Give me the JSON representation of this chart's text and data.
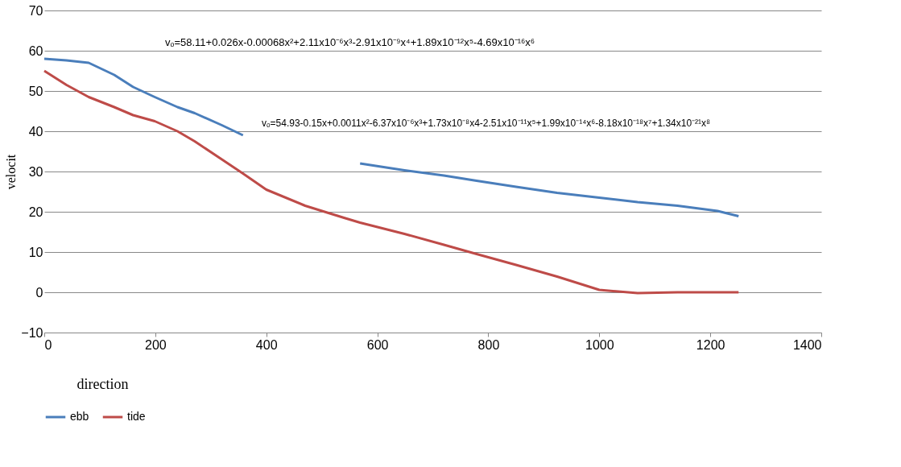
{
  "chart_data": {
    "type": "line",
    "xlabel": "direction",
    "ylabel": "velocit",
    "x": [
      0,
      40,
      80,
      126,
      160,
      199,
      240,
      271,
      320,
      358,
      400,
      470,
      540,
      569,
      649,
      720,
      779,
      850,
      924,
      1000,
      1069,
      1141,
      1213,
      1251
    ],
    "series": [
      {
        "name": "ebb",
        "color": "#4a7ebb",
        "values": [
          58,
          57.6,
          57,
          54,
          51,
          48.5,
          46,
          44.5,
          41.5,
          39,
          null,
          null,
          null,
          32,
          30.3,
          29,
          27.7,
          26.2,
          24.7,
          23.5,
          22.4,
          21.5,
          20.2,
          18.9
        ]
      },
      {
        "name": "tide",
        "color": "#be4b48",
        "values": [
          55,
          51.5,
          48.5,
          46,
          44,
          42.5,
          40,
          37.5,
          33,
          29.5,
          25.5,
          21.5,
          18.5,
          17.3,
          14.5,
          11.8,
          9.5,
          6.8,
          3.9,
          0.6,
          -0.2,
          0,
          0,
          0
        ]
      }
    ],
    "xlim": [
      0,
      1400
    ],
    "xticks": [
      0,
      200,
      400,
      600,
      800,
      1000,
      1200,
      1400
    ],
    "ylim": [
      -10,
      70
    ],
    "yticks": [
      -10,
      0,
      10,
      20,
      30,
      40,
      50,
      60,
      70
    ],
    "grid": "y",
    "legend": "bottom",
    "marker": "none",
    "line_style": "solid",
    "annotations": [
      "vₒ=58.11+0.026x-0.00068x²+2.11x10⁻⁶x³-2.91x10⁻⁹x⁴+1.89x10⁻¹²x⁵-4.69x10⁻¹⁶x⁶",
      "vₒ=54.93-0.15x+0.0011x²-6.37x10⁻⁶x³+1.73x10⁻⁸x4-2.51x10⁻¹¹x⁵+1.99x10⁻¹⁴x⁶-8.18x10⁻¹⁸x⁷+1.34x10⁻²¹x⁸"
    ]
  }
}
